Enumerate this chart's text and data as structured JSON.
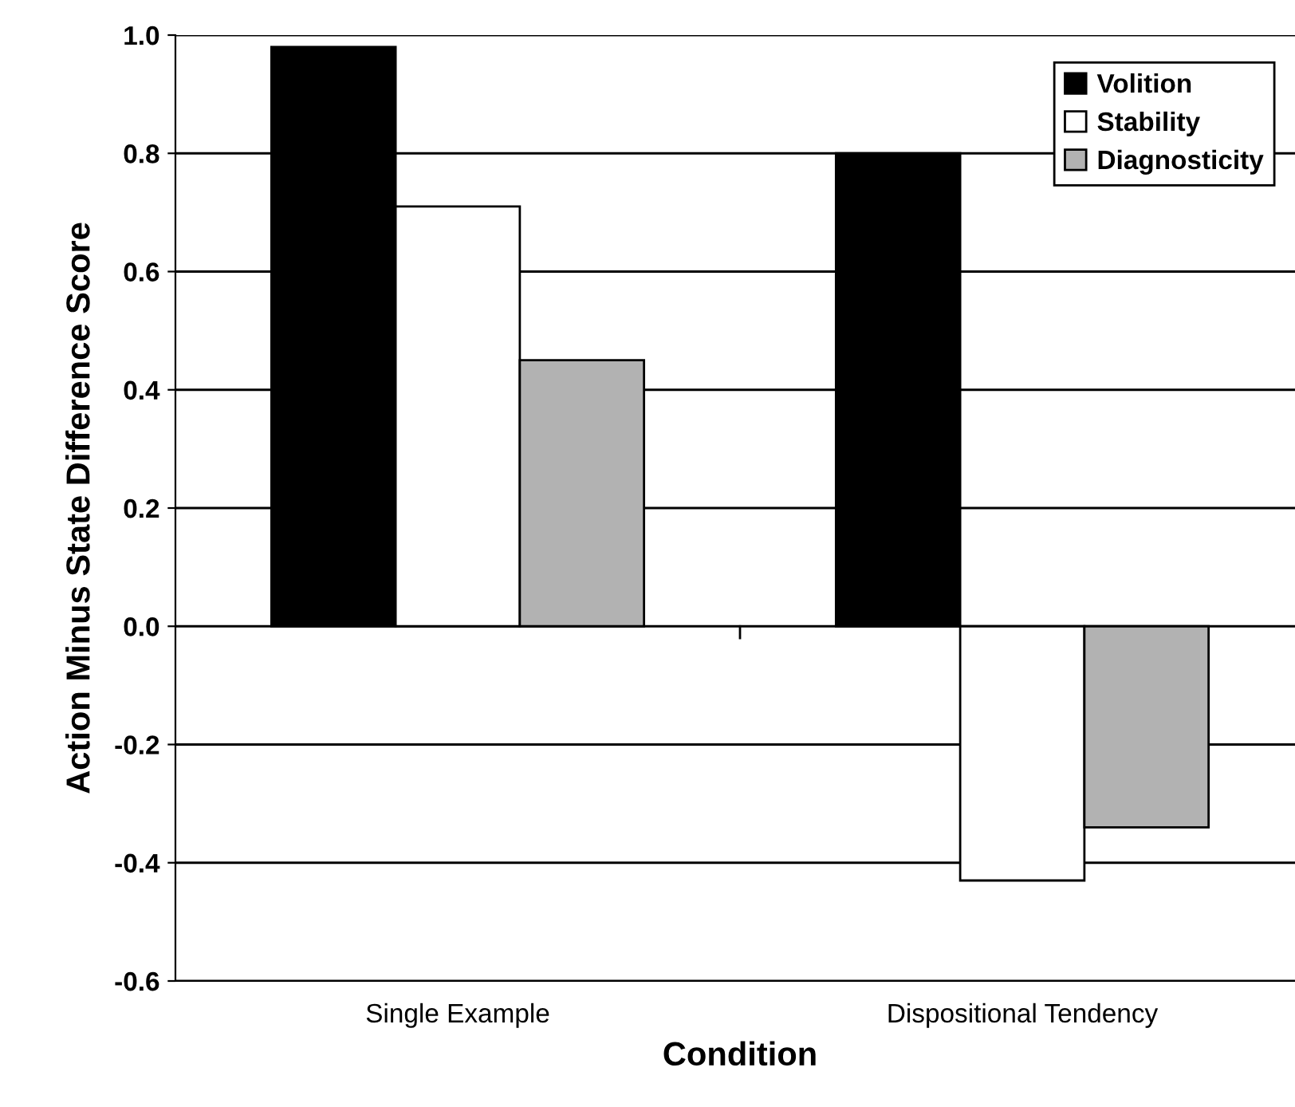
{
  "chart_data": {
    "type": "bar",
    "xlabel": "Condition",
    "ylabel": "Action Minus State Difference Score",
    "categories": [
      "Single Example",
      "Dispositional Tendency"
    ],
    "series": [
      {
        "name": "Volition",
        "color": "#000000",
        "values": [
          0.98,
          0.8
        ]
      },
      {
        "name": "Stability",
        "color": "#ffffff",
        "values": [
          0.71,
          -0.43
        ]
      },
      {
        "name": "Diagnosticity",
        "color": "#b2b2b2",
        "values": [
          0.45,
          -0.34
        ]
      }
    ],
    "ylim": [
      -0.6,
      1.0
    ],
    "yticks": [
      {
        "value": -0.6,
        "label": "-0.6"
      },
      {
        "value": -0.4,
        "label": "-0.4"
      },
      {
        "value": -0.2,
        "label": "-0.2"
      },
      {
        "value": 0.0,
        "label": "0.0"
      },
      {
        "value": 0.2,
        "label": "0.2"
      },
      {
        "value": 0.4,
        "label": "0.4"
      },
      {
        "value": 0.6,
        "label": "0.6"
      },
      {
        "value": 0.8,
        "label": "0.8"
      },
      {
        "value": 1.0,
        "label": "1.0"
      }
    ],
    "grid": "y",
    "legend": "top right"
  }
}
